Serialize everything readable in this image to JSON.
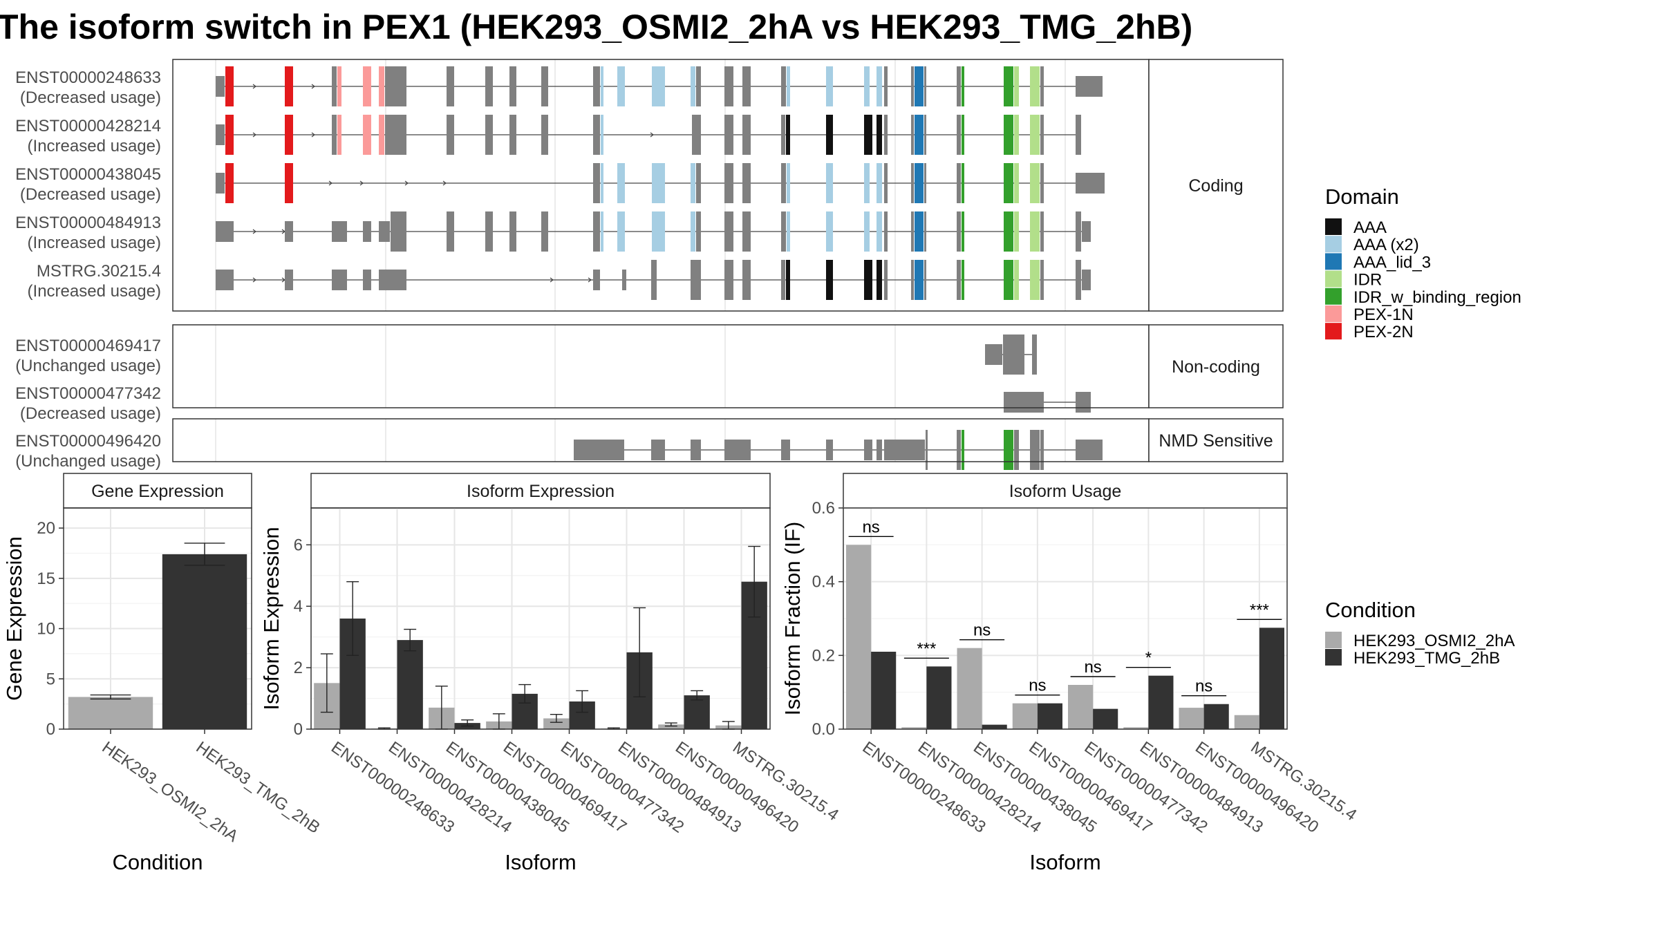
{
  "title": "The isoform switch in PEX1 (HEK293_OSMI2_2hA vs HEK293_TMG_2hB)",
  "colors": {
    "AAA": "#111111",
    "AAA (x2)": "#a6cee3",
    "AAA_lid_3": "#1f78b4",
    "IDR": "#b2df8a",
    "IDR_w_binding_region": "#33a02c",
    "PEX-1N": "#fb9a99",
    "PEX-2N": "#e31a1c",
    "none": "#808080",
    "cond_A": "#aaaaaa",
    "cond_B": "#333333"
  },
  "legends": {
    "domain": {
      "title": "Domain",
      "entries": [
        "AAA",
        "AAA (x2)",
        "AAA_lid_3",
        "IDR",
        "IDR_w_binding_region",
        "PEX-1N",
        "PEX-2N"
      ]
    },
    "condition": {
      "title": "Condition",
      "entries": [
        "HEK293_OSMI2_2hA",
        "HEK293_TMG_2hB"
      ]
    }
  },
  "structure": {
    "panels": [
      {
        "label": "Coding",
        "transcripts": [
          {
            "name": "ENST00000248633",
            "usage": "(Decreased usage)"
          },
          {
            "name": "ENST00000428214",
            "usage": "(Increased usage)"
          },
          {
            "name": "ENST00000438045",
            "usage": "(Decreased usage)"
          },
          {
            "name": "ENST00000484913",
            "usage": "(Increased usage)"
          },
          {
            "name": "MSTRG.30215.4",
            "usage": "(Increased usage)"
          }
        ]
      },
      {
        "label": "Non-coding",
        "transcripts": [
          {
            "name": "ENST00000469417",
            "usage": "(Unchanged usage)"
          },
          {
            "name": "ENST00000477342",
            "usage": "(Decreased usage)"
          }
        ]
      },
      {
        "label": "NMD Sensitive",
        "transcripts": [
          {
            "name": "ENST00000496420",
            "usage": "(Unchanged usage)"
          }
        ]
      }
    ]
  },
  "chart_data": [
    {
      "type": "bar",
      "title": "Gene Expression",
      "xlabel": "Condition",
      "ylabel": "Gene Expression",
      "categories": [
        "HEK293_OSMI2_2hA",
        "HEK293_TMG_2hB"
      ],
      "values": [
        3.2,
        17.4
      ],
      "errors": [
        [
          3.0,
          3.4
        ],
        [
          16.3,
          18.5
        ]
      ],
      "ylim": [
        0,
        22
      ],
      "yticks": [
        0,
        5,
        10,
        15,
        20
      ],
      "grid": true
    },
    {
      "type": "bar",
      "title": "Isoform Expression",
      "xlabel": "Isoform",
      "ylabel": "Isoform Expression",
      "categories": [
        "ENST00000248633",
        "ENST00000428214",
        "ENST00000438045",
        "ENST00000469417",
        "ENST00000477342",
        "ENST00000484913",
        "ENST00000496420",
        "MSTRG.30215.4"
      ],
      "series": [
        {
          "name": "HEK293_OSMI2_2hA",
          "values": [
            1.5,
            0.02,
            0.7,
            0.25,
            0.35,
            0.02,
            0.15,
            0.12
          ],
          "errors": [
            [
              0.55,
              2.45
            ],
            [
              0.0,
              0.04
            ],
            [
              0.0,
              1.4
            ],
            [
              0.0,
              0.5
            ],
            [
              0.22,
              0.48
            ],
            [
              0.0,
              0.04
            ],
            [
              0.1,
              0.2
            ],
            [
              0.0,
              0.25
            ]
          ]
        },
        {
          "name": "HEK293_TMG_2hB",
          "values": [
            3.6,
            2.9,
            0.2,
            1.15,
            0.9,
            2.5,
            1.1,
            4.8
          ],
          "errors": [
            [
              2.4,
              4.8
            ],
            [
              2.55,
              3.25
            ],
            [
              0.1,
              0.3
            ],
            [
              0.85,
              1.45
            ],
            [
              0.55,
              1.25
            ],
            [
              1.05,
              3.95
            ],
            [
              0.95,
              1.25
            ],
            [
              3.65,
              5.95
            ]
          ]
        }
      ],
      "ylim": [
        0,
        7.2
      ],
      "yticks": [
        0,
        2,
        4,
        6
      ],
      "grid": true
    },
    {
      "type": "bar",
      "title": "Isoform Usage",
      "xlabel": "Isoform",
      "ylabel": "Isoform Fraction (IF)",
      "categories": [
        "ENST00000248633",
        "ENST00000428214",
        "ENST00000438045",
        "ENST00000469417",
        "ENST00000477342",
        "ENST00000484913",
        "ENST00000496420",
        "MSTRG.30215.4"
      ],
      "series": [
        {
          "name": "HEK293_OSMI2_2hA",
          "values": [
            0.5,
            0.005,
            0.22,
            0.07,
            0.12,
            0.005,
            0.058,
            0.038
          ]
        },
        {
          "name": "HEK293_TMG_2hB",
          "values": [
            0.21,
            0.17,
            0.012,
            0.07,
            0.055,
            0.145,
            0.068,
            0.275
          ]
        }
      ],
      "significance": [
        "ns",
        "***",
        "ns",
        "ns",
        "ns",
        "*",
        "ns",
        "***"
      ],
      "ylim": [
        0,
        0.6
      ],
      "yticks": [
        0.0,
        0.2,
        0.4,
        0.6
      ],
      "grid": true
    }
  ]
}
